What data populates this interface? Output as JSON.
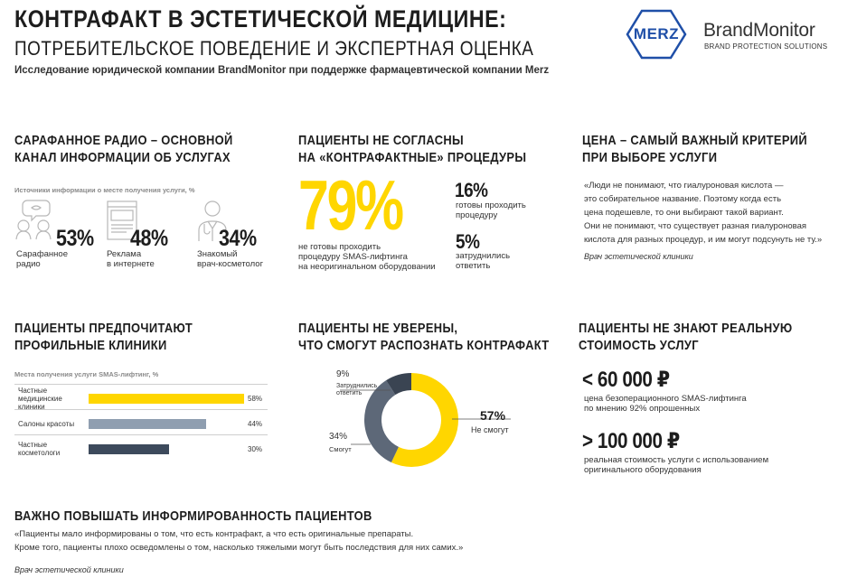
{
  "header": {
    "title": "КОНТРАФАКТ В ЭСТЕТИЧЕСКОЙ МЕДИЦИНЕ:",
    "subtitle": "ПОТРЕБИТЕЛЬСКОЕ ПОВЕДЕНИЕ И ЭКСПЕРТНАЯ ОЦЕНКА",
    "description": "Исследование юридической компании BrandMonitor при поддержке фармацевтической компании Merz",
    "merz_logo": "MERZ",
    "brand_logo": "BrandMonitor",
    "brand_tagline": "BRAND PROTECTION SOLUTIONS"
  },
  "sections": {
    "word_of_mouth": {
      "heading_line1": "САРАФАННОЕ РАДИО – ОСНОВНОЙ",
      "heading_line2": "КАНАЛ ИНФОРМАЦИИ ОБ УСЛУГАХ",
      "caption": "Источники информации о месте получения услуги, %",
      "items": [
        {
          "value": "53%",
          "label_line1": "Сарафанное",
          "label_line2": "радио",
          "icon": "people-talking-icon"
        },
        {
          "value": "48%",
          "label_line1": "Реклама",
          "label_line2": "в интернете",
          "icon": "browser-ad-icon"
        },
        {
          "value": "34%",
          "label_line1": "Знакомый",
          "label_line2": "врач-косметолог",
          "icon": "doctor-icon"
        }
      ]
    },
    "disagree": {
      "heading_line1": "ПАЦИЕНТЫ НЕ СОГЛАСНЫ",
      "heading_line2": "НА «КОНТРАФАКТНЫЕ» ПРОЦЕДУРЫ",
      "big_value": "79%",
      "big_label_line1": "не готовы проходить",
      "big_label_line2": "процедуру SMAS-лифтинга",
      "big_label_line3": "на неоригинальном оборудовании",
      "side1_value": "16%",
      "side1_line1": "готовы проходить",
      "side1_line2": "процедуру",
      "side2_value": "5%",
      "side2_line1": "затруднились",
      "side2_line2": "ответить",
      "accent": "#ffd600"
    },
    "price": {
      "heading_line1": "ЦЕНА – САМЫЙ ВАЖНЫЙ КРИТЕРИЙ",
      "heading_line2": "ПРИ ВЫБОРЕ УСЛУГИ",
      "quote_lines": [
        "«Люди не понимают, что гиалуроновая кислота —",
        "это собирательное название. Поэтому когда есть",
        "цена подешевле, то они выбирают такой вариант.",
        "Они не понимают, что существует разная гиалуроновая",
        "кислота для разных процедур, и им могут подсунуть не ту.»"
      ],
      "author": "Врач эстетической клиники"
    },
    "clinics": {
      "heading_line1": "ПАЦИЕНТЫ ПРЕДПОЧИТАЮТ",
      "heading_line2": "ПРОФИЛЬНЫЕ КЛИНИКИ",
      "caption": "Места получения услуги SMAS-лифтинг, %"
    },
    "recognize": {
      "heading_line1": "ПАЦИЕНТЫ НЕ УВЕРЕНЫ,",
      "heading_line2": "ЧТО СМОГУТ РАСПОЗНАТЬ КОНТРАФАКТ",
      "label_9_value": "9%",
      "label_9_line1": "Затруднились",
      "label_9_line2": "ответить",
      "label_34_value": "34%",
      "label_34_text": "Смогут",
      "label_57_value": "57%",
      "label_57_text": "Не смогут"
    },
    "cost": {
      "heading_line1": "ПАЦИЕНТЫ НЕ ЗНАЮТ РЕАЛЬНУЮ",
      "heading_line2": "СТОИМОСТЬ УСЛУГ",
      "price1": "< 60 000 ₽",
      "price1_line1": "цена безоперационного SMAS-лифтинга",
      "price1_line2": "по мнению 92% опрошенных",
      "price2": "> 100 000 ₽",
      "price2_line1": "реальная стоимость услуги с использованием",
      "price2_line2": "оригинального оборудования"
    },
    "awareness": {
      "heading": "ВАЖНО ПОВЫШАТЬ ИНФОРМИРОВАННОСТЬ ПАЦИЕНТОВ",
      "quote_line1": "«Пациенты мало информированы о том, что есть контрафакт, а что есть оригинальные препараты.",
      "quote_line2": "Кроме того, пациенты плохо осведомлены о том, насколько тяжелыми могут быть последствия для них самих.»",
      "author": "Врач эстетической клиники"
    }
  },
  "chart_data": [
    {
      "type": "bar",
      "orientation": "horizontal",
      "title": "Места получения услуги SMAS-лифтинг, %",
      "categories": [
        "Частные медицинские клиники",
        "Салоны красоты",
        "Частные косметологи"
      ],
      "category_lines": [
        [
          "Частные",
          "медицинские",
          "клиники"
        ],
        [
          "Салоны красоты"
        ],
        [
          "Частные",
          "косметологи"
        ]
      ],
      "values": [
        58,
        44,
        30
      ],
      "value_labels": [
        "58%",
        "44%",
        "30%"
      ],
      "colors": [
        "#ffd600",
        "#8f9eb0",
        "#3d4a5c"
      ],
      "xlim": [
        0,
        100
      ]
    },
    {
      "type": "pie",
      "style": "donut",
      "labels": [
        "Не смогут",
        "Смогут",
        "Затруднились ответить"
      ],
      "values": [
        57,
        34,
        9
      ],
      "colors": [
        "#ffd600",
        "#5d6878",
        "#3a4452"
      ]
    }
  ]
}
